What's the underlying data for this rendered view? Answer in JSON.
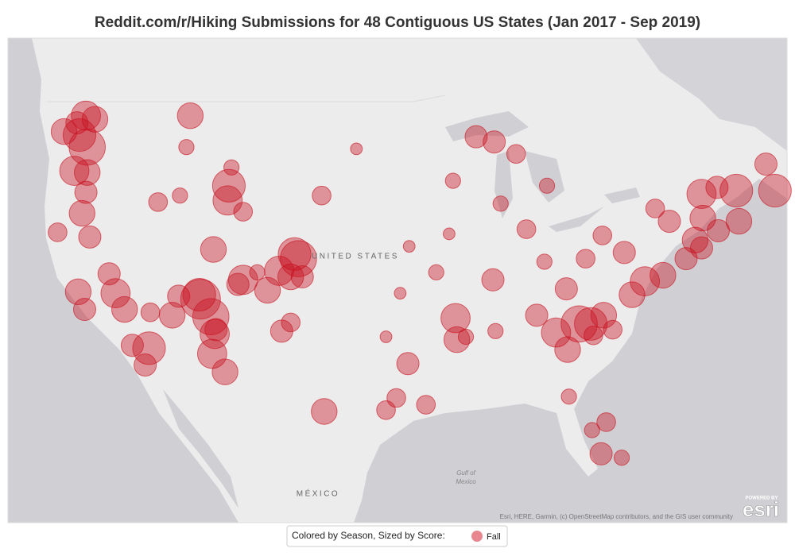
{
  "map": {
    "title": "Reddit.com/r/Hiking Submissions for 48 Contiguous US States (Jan 2017 - Sep 2019)",
    "country_labels": [
      "UNITED STATES",
      "MÉXICO"
    ],
    "sea_label": [
      "Gulf of",
      "Mexico"
    ],
    "attribution": "Esri, HERE, Garmin, (c) OpenStreetMap contributors, and the GIS user community",
    "logo": {
      "top": "POWERED BY",
      "name": "esri"
    },
    "legend": {
      "text": "Colored by Season, Sized by Score:",
      "items": [
        {
          "name": "Fall",
          "color": "#e8868f"
        }
      ]
    },
    "point_color": "#c8101e",
    "points": [
      {
        "lon": -122.3,
        "lat": 47.6,
        "score": 8
      },
      {
        "lon": -121.8,
        "lat": 48.7,
        "score": 7
      },
      {
        "lon": -121.7,
        "lat": 46.9,
        "score": 9
      },
      {
        "lon": -122.5,
        "lat": 48.3,
        "score": 5
      },
      {
        "lon": -123.5,
        "lat": 47.8,
        "score": 6
      },
      {
        "lon": -121.1,
        "lat": 48.5,
        "score": 6
      },
      {
        "lon": -122.7,
        "lat": 45.5,
        "score": 7
      },
      {
        "lon": -121.7,
        "lat": 45.4,
        "score": 6
      },
      {
        "lon": -121.8,
        "lat": 44.2,
        "score": 5
      },
      {
        "lon": -122.1,
        "lat": 42.9,
        "score": 6
      },
      {
        "lon": -124.0,
        "lat": 41.7,
        "score": 4
      },
      {
        "lon": -121.5,
        "lat": 41.4,
        "score": 5
      },
      {
        "lon": -113.7,
        "lat": 48.7,
        "score": 6
      },
      {
        "lon": -114.0,
        "lat": 46.9,
        "score": 3
      },
      {
        "lon": -110.5,
        "lat": 45.7,
        "score": 3
      },
      {
        "lon": -110.7,
        "lat": 44.6,
        "score": 8
      },
      {
        "lon": -110.8,
        "lat": 43.7,
        "score": 7
      },
      {
        "lon": -109.6,
        "lat": 43.0,
        "score": 4
      },
      {
        "lon": -119.5,
        "lat": 37.7,
        "score": 7
      },
      {
        "lon": -118.8,
        "lat": 36.6,
        "score": 6
      },
      {
        "lon": -122.4,
        "lat": 37.8,
        "score": 6
      },
      {
        "lon": -121.9,
        "lat": 36.6,
        "score": 5
      },
      {
        "lon": -118.2,
        "lat": 34.1,
        "score": 5
      },
      {
        "lon": -116.9,
        "lat": 33.9,
        "score": 8
      },
      {
        "lon": -117.2,
        "lat": 32.7,
        "score": 5
      },
      {
        "lon": -120.0,
        "lat": 39.0,
        "score": 5
      },
      {
        "lon": -116.8,
        "lat": 36.4,
        "score": 4
      },
      {
        "lon": -112.9,
        "lat": 37.3,
        "score": 10
      },
      {
        "lon": -113.0,
        "lat": 37.6,
        "score": 8
      },
      {
        "lon": -111.9,
        "lat": 40.6,
        "score": 6
      },
      {
        "lon": -109.6,
        "lat": 38.6,
        "score": 7
      },
      {
        "lon": -110.0,
        "lat": 38.3,
        "score": 5
      },
      {
        "lon": -112.1,
        "lat": 36.1,
        "score": 9
      },
      {
        "lon": -111.7,
        "lat": 35.2,
        "score": 5
      },
      {
        "lon": -111.8,
        "lat": 34.9,
        "score": 7
      },
      {
        "lon": -111.0,
        "lat": 32.2,
        "score": 6
      },
      {
        "lon": -112.0,
        "lat": 33.5,
        "score": 7
      },
      {
        "lon": -115.1,
        "lat": 36.2,
        "score": 6
      },
      {
        "lon": -114.6,
        "lat": 37.5,
        "score": 5
      },
      {
        "lon": -116.2,
        "lat": 43.6,
        "score": 4
      },
      {
        "lon": -114.5,
        "lat": 44.0,
        "score": 3
      },
      {
        "lon": -105.6,
        "lat": 40.3,
        "score": 8
      },
      {
        "lon": -105.3,
        "lat": 40.0,
        "score": 9
      },
      {
        "lon": -106.8,
        "lat": 39.2,
        "score": 7
      },
      {
        "lon": -105.9,
        "lat": 38.8,
        "score": 6
      },
      {
        "lon": -107.7,
        "lat": 37.9,
        "score": 6
      },
      {
        "lon": -105.0,
        "lat": 38.8,
        "score": 5
      },
      {
        "lon": -108.5,
        "lat": 39.1,
        "score": 3
      },
      {
        "lon": -106.6,
        "lat": 35.1,
        "score": 5
      },
      {
        "lon": -105.9,
        "lat": 35.7,
        "score": 4
      },
      {
        "lon": -103.3,
        "lat": 29.3,
        "score": 6
      },
      {
        "lon": -98.5,
        "lat": 29.4,
        "score": 4
      },
      {
        "lon": -97.7,
        "lat": 30.3,
        "score": 4
      },
      {
        "lon": -96.8,
        "lat": 32.8,
        "score": 5
      },
      {
        "lon": -95.4,
        "lat": 29.8,
        "score": 4
      },
      {
        "lon": -93.3,
        "lat": 44.9,
        "score": 3
      },
      {
        "lon": -91.5,
        "lat": 47.5,
        "score": 5
      },
      {
        "lon": -90.1,
        "lat": 47.2,
        "score": 5
      },
      {
        "lon": -88.4,
        "lat": 46.5,
        "score": 4
      },
      {
        "lon": -86.0,
        "lat": 44.6,
        "score": 3
      },
      {
        "lon": -87.6,
        "lat": 41.9,
        "score": 4
      },
      {
        "lon": -89.6,
        "lat": 43.5,
        "score": 3
      },
      {
        "lon": -93.6,
        "lat": 41.6,
        "score": 2
      },
      {
        "lon": -94.6,
        "lat": 39.1,
        "score": 3
      },
      {
        "lon": -96.7,
        "lat": 40.8,
        "score": 2
      },
      {
        "lon": -103.5,
        "lat": 44.0,
        "score": 4
      },
      {
        "lon": -100.8,
        "lat": 46.8,
        "score": 2
      },
      {
        "lon": -97.4,
        "lat": 37.7,
        "score": 2
      },
      {
        "lon": -98.5,
        "lat": 34.7,
        "score": 2
      },
      {
        "lon": -93.1,
        "lat": 36.0,
        "score": 7
      },
      {
        "lon": -93.0,
        "lat": 34.5,
        "score": 6
      },
      {
        "lon": -92.3,
        "lat": 34.7,
        "score": 3
      },
      {
        "lon": -90.2,
        "lat": 38.6,
        "score": 5
      },
      {
        "lon": -90.0,
        "lat": 35.1,
        "score": 3
      },
      {
        "lon": -83.5,
        "lat": 35.6,
        "score": 9
      },
      {
        "lon": -82.6,
        "lat": 35.6,
        "score": 8
      },
      {
        "lon": -84.4,
        "lat": 33.8,
        "score": 6
      },
      {
        "lon": -85.3,
        "lat": 35.0,
        "score": 7
      },
      {
        "lon": -81.6,
        "lat": 36.2,
        "score": 6
      },
      {
        "lon": -84.5,
        "lat": 38.0,
        "score": 5
      },
      {
        "lon": -80.9,
        "lat": 35.2,
        "score": 4
      },
      {
        "lon": -82.4,
        "lat": 34.8,
        "score": 4
      },
      {
        "lon": -79.4,
        "lat": 37.6,
        "score": 6
      },
      {
        "lon": -78.4,
        "lat": 38.5,
        "score": 7
      },
      {
        "lon": -77.0,
        "lat": 38.9,
        "score": 6
      },
      {
        "lon": -80.0,
        "lat": 40.4,
        "score": 5
      },
      {
        "lon": -81.7,
        "lat": 41.5,
        "score": 4
      },
      {
        "lon": -86.8,
        "lat": 36.2,
        "score": 5
      },
      {
        "lon": -83.0,
        "lat": 40.0,
        "score": 4
      },
      {
        "lon": -86.2,
        "lat": 39.8,
        "score": 3
      },
      {
        "lon": -75.2,
        "lat": 40.0,
        "score": 5
      },
      {
        "lon": -74.0,
        "lat": 40.7,
        "score": 5
      },
      {
        "lon": -74.5,
        "lat": 41.2,
        "score": 6
      },
      {
        "lon": -73.9,
        "lat": 42.6,
        "score": 6
      },
      {
        "lon": -74.0,
        "lat": 44.1,
        "score": 7
      },
      {
        "lon": -72.8,
        "lat": 44.5,
        "score": 5
      },
      {
        "lon": -71.3,
        "lat": 44.3,
        "score": 8
      },
      {
        "lon": -69.0,
        "lat": 45.9,
        "score": 5
      },
      {
        "lon": -68.3,
        "lat": 44.3,
        "score": 8
      },
      {
        "lon": -71.1,
        "lat": 42.4,
        "score": 6
      },
      {
        "lon": -72.7,
        "lat": 41.8,
        "score": 5
      },
      {
        "lon": -76.5,
        "lat": 42.4,
        "score": 5
      },
      {
        "lon": -77.6,
        "lat": 43.2,
        "score": 4
      },
      {
        "lon": -81.4,
        "lat": 28.5,
        "score": 4
      },
      {
        "lon": -82.5,
        "lat": 27.9,
        "score": 3
      },
      {
        "lon": -81.8,
        "lat": 26.1,
        "score": 5
      },
      {
        "lon": -80.2,
        "lat": 25.8,
        "score": 3
      },
      {
        "lon": -84.3,
        "lat": 30.4,
        "score": 3
      }
    ]
  }
}
